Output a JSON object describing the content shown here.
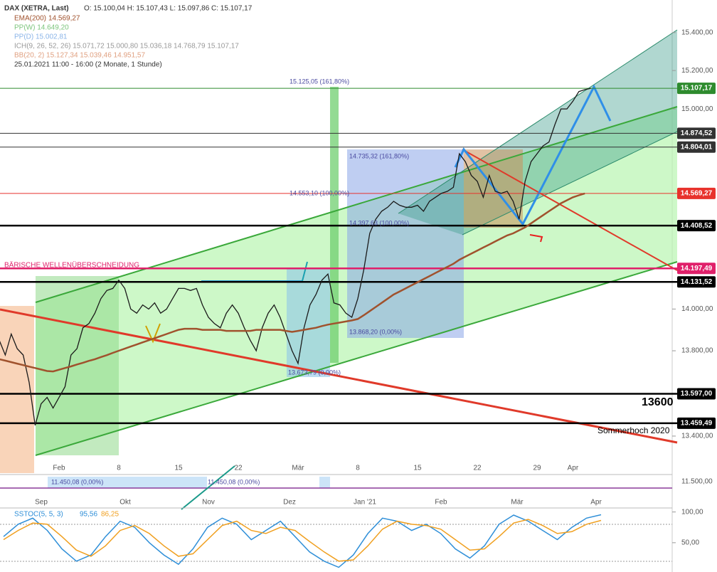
{
  "chart_data": [
    {
      "type": "line",
      "log_scale": true,
      "ylim": [
        13230,
        15555
      ],
      "yticks": [
        {
          "value": 15400,
          "label": "15.400,00"
        },
        {
          "value": 15200,
          "label": "15.200,00"
        },
        {
          "value": 15000,
          "label": "15.000,00"
        },
        {
          "value": 14000,
          "label": "14.000,00"
        },
        {
          "value": 13800,
          "label": "13.800,00"
        },
        {
          "value": 13400,
          "label": "13.400,00"
        }
      ],
      "categories": [
        null,
        null,
        null,
        null,
        null,
        null,
        null,
        null,
        null,
        null,
        "Feb",
        null,
        null,
        null,
        null,
        null,
        null,
        null,
        null,
        null,
        "8",
        null,
        null,
        null,
        null,
        null,
        null,
        null,
        null,
        null,
        "15",
        null,
        null,
        null,
        null,
        null,
        null,
        null,
        null,
        null,
        "22",
        null,
        null,
        null,
        null,
        null,
        null,
        null,
        null,
        null,
        "Mär",
        null,
        null,
        null,
        null,
        null,
        null,
        null,
        null,
        null,
        "8",
        null,
        null,
        null,
        null,
        null,
        null,
        null,
        null,
        null,
        "15",
        null,
        null,
        null,
        null,
        null,
        null,
        null,
        null,
        null,
        "22",
        null,
        null,
        null,
        null,
        null,
        null,
        null,
        null,
        null,
        "29",
        null,
        null,
        null,
        null,
        null,
        "Apr",
        null,
        null,
        null,
        null,
        null,
        null,
        null,
        null,
        null,
        null,
        null,
        null,
        null,
        null,
        null,
        null
      ],
      "series": [
        {
          "name": "DAX (XETRA, Last)",
          "legend_value": "O: 15.100,04   H: 15.107,43   L: 15.097,86   C: 15.107,17",
          "color": "#1a1a1a",
          "values": [
            13850,
            13780,
            13880,
            13810,
            13780,
            13650,
            13450,
            13550,
            13580,
            13530,
            13580,
            13630,
            13780,
            13810,
            13910,
            13930,
            13980,
            14050,
            14090,
            14100,
            14140,
            14100,
            14000,
            13980,
            14020,
            14000,
            14030,
            13980,
            14000,
            14050,
            14100,
            14100,
            14090,
            14100,
            14020,
            13960,
            13930,
            13910,
            13980,
            14020,
            13980,
            13910,
            13850,
            13800,
            13910,
            13980,
            14020,
            13960,
            13880,
            13800,
            13740,
            13910,
            14020,
            14070,
            14140,
            14170,
            14030,
            14020,
            13980,
            13960,
            14050,
            14190,
            14370,
            14440,
            14480,
            14500,
            14530,
            14510,
            14500,
            14500,
            14510,
            14480,
            14530,
            14550,
            14570,
            14580,
            14600,
            14770,
            14730,
            14660,
            14630,
            14550,
            14660,
            14580,
            14570,
            14580,
            14530,
            14440,
            14630,
            14730,
            14770,
            14810,
            14830,
            14920,
            15000,
            15000,
            15040,
            15090,
            15100,
            15107.17,
            null,
            null,
            null,
            null,
            null,
            null,
            null,
            null,
            null,
            null,
            null,
            null,
            null
          ]
        },
        {
          "name": "EMA(200)",
          "legend_value": "14.569,27",
          "color": "#a0522d",
          "values": [
            13760,
            13753,
            13746,
            13739,
            13732,
            13725,
            13718,
            13711,
            13704,
            13702,
            13710,
            13718,
            13726,
            13735,
            13743,
            13752,
            13760,
            13770,
            13779,
            13790,
            13800,
            13810,
            13820,
            13830,
            13840,
            13850,
            13860,
            13870,
            13880,
            13890,
            13900,
            13905,
            13905,
            13905,
            13900,
            13900,
            13900,
            13900,
            13895,
            13895,
            13895,
            13895,
            13895,
            13900,
            13900,
            13900,
            13900,
            13900,
            13895,
            13890,
            13895,
            13900,
            13905,
            13910,
            13918,
            13925,
            13930,
            13935,
            13940,
            13945,
            13952,
            13970,
            13990,
            14010,
            14030,
            14050,
            14070,
            14085,
            14100,
            14115,
            14130,
            14145,
            14160,
            14175,
            14190,
            14205,
            14220,
            14240,
            14255,
            14270,
            14285,
            14300,
            14315,
            14330,
            14345,
            14360,
            14370,
            14385,
            14400,
            14420,
            14440,
            14460,
            14480,
            14500,
            14520,
            14535,
            14550,
            14560,
            14569.27,
            null,
            null,
            null,
            null,
            null,
            null,
            null,
            null,
            null,
            null,
            null,
            null,
            null,
            null
          ]
        }
      ],
      "indicators": [
        "PP(W)  14.649,20",
        "PP(D)  15.002,81",
        "ICH(9, 26, 52, 26)  15.071,72  15.000,80  15.036,18  14.768,79  15.107,17",
        "BB(20, 2)  15.127,34  15.039,46  14.951,57"
      ],
      "period": "25.01.2021 11:00 - 16:00   (2 Monate, 1 Stunde)",
      "levels": [
        {
          "value": 15107.17,
          "label": "15.107,17",
          "color": "#2e8b2e"
        },
        {
          "value": 14874.52,
          "label": "14.874,52",
          "color": "#333333"
        },
        {
          "value": 14804.01,
          "label": "14.804,01",
          "color": "#333333"
        },
        {
          "value": 14569.27,
          "label": "14.569,27",
          "color": "#e8322c"
        },
        {
          "value": 14408.52,
          "label": "14.408,52",
          "color": "#000000"
        },
        {
          "value": 14197.49,
          "label": "14.197,49",
          "color": "#e0206a"
        },
        {
          "value": 14131.52,
          "label": "14.131,52",
          "color": "#000000"
        },
        {
          "value": 13597,
          "label": "13.597,00",
          "color": "#000000"
        },
        {
          "value": 13459.49,
          "label": "13.459,49",
          "color": "#000000"
        }
      ],
      "annotations": [
        "BÄRISCHE WELLENÜBERSCHNEIDUNG",
        "13600",
        "Sommerhoch 2020",
        "15.125,05 (161,80%)",
        "14.735,32 (161,80%)",
        "14.553,10 (100,00%)",
        "14.397,63 (100,00%)",
        "13.868,20 (0,00%)",
        "13.673,79 (0,00%)"
      ],
      "overview_labels": [
        "11.450,08 (0,00%)",
        "11.450,08 (0,00%)",
        "11.500,00"
      ],
      "months": [
        "Sep",
        "Okt",
        "Nov",
        "Dez",
        "Jan '21",
        "Feb",
        "Mär",
        "Apr"
      ]
    },
    {
      "type": "line",
      "ylim": [
        7,
        110
      ],
      "yticks": [
        {
          "value": 100,
          "label": "100,00"
        },
        {
          "value": 50,
          "label": "50,00"
        }
      ],
      "series": [
        {
          "name": "SSTOC(5, 5, 3)",
          "legend_value": "95,56",
          "color": "#2f8fd8",
          "values": [
            60,
            80,
            90,
            70,
            40,
            20,
            30,
            60,
            85,
            75,
            50,
            30,
            15,
            40,
            75,
            90,
            80,
            55,
            70,
            85,
            60,
            35,
            20,
            10,
            30,
            65,
            90,
            85,
            70,
            80,
            65,
            40,
            25,
            45,
            80,
            95,
            85,
            70,
            55,
            75,
            90,
            95.56
          ]
        },
        {
          "legend_value": "86,25",
          "color": "#f0a020",
          "values": [
            55,
            70,
            82,
            80,
            60,
            38,
            28,
            45,
            70,
            78,
            65,
            45,
            28,
            32,
            55,
            78,
            85,
            70,
            65,
            75,
            70,
            52,
            35,
            20,
            22,
            45,
            72,
            85,
            80,
            78,
            72,
            55,
            38,
            40,
            60,
            82,
            88,
            78,
            65,
            68,
            80,
            86.25
          ]
        }
      ]
    }
  ]
}
